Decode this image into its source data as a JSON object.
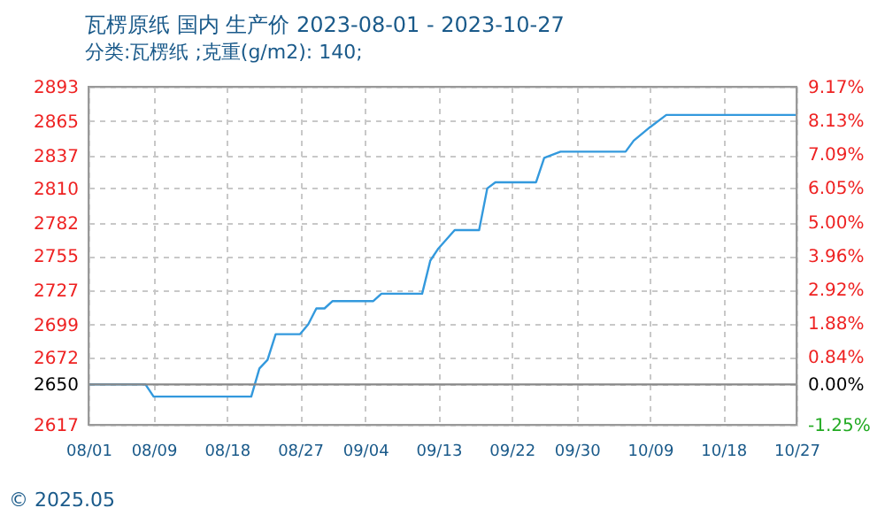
{
  "chart_data": {
    "type": "line",
    "title": "瓦楞原纸 国内 生产价 2023-08-01 - 2023-10-27",
    "subtitle": "分类:瓦楞纸 ;克重(g/m2): 140;",
    "x": [
      "2023-08-01",
      "2023-08-08",
      "2023-08-09",
      "2023-08-21",
      "2023-08-22",
      "2023-08-23",
      "2023-08-24",
      "2023-08-27",
      "2023-08-28",
      "2023-08-29",
      "2023-08-30",
      "2023-08-31",
      "2023-09-05",
      "2023-09-06",
      "2023-09-11",
      "2023-09-12",
      "2023-09-13",
      "2023-09-15",
      "2023-09-18",
      "2023-09-19",
      "2023-09-20",
      "2023-09-25",
      "2023-09-26",
      "2023-09-28",
      "2023-10-06",
      "2023-10-07",
      "2023-10-09",
      "2023-10-11",
      "2023-10-27"
    ],
    "series": [
      {
        "color": "#3399dd",
        "values": [
          2650,
          2650,
          2640,
          2640,
          2663,
          2670,
          2691,
          2691,
          2699,
          2712,
          2712,
          2718,
          2718,
          2724,
          2724,
          2751,
          2761,
          2776,
          2776,
          2810,
          2815,
          2815,
          2835,
          2840,
          2840,
          2849,
          2860,
          2870,
          2870
        ]
      }
    ],
    "xlim": [
      "2023-08-01",
      "2023-10-27"
    ],
    "xticks": [
      {
        "value": "2023-08-01",
        "label": "08/01"
      },
      {
        "value": "2023-08-09",
        "label": "08/09"
      },
      {
        "value": "2023-08-18",
        "label": "08/18"
      },
      {
        "value": "2023-08-27",
        "label": "08/27"
      },
      {
        "value": "2023-09-04",
        "label": "09/04"
      },
      {
        "value": "2023-09-13",
        "label": "09/13"
      },
      {
        "value": "2023-09-22",
        "label": "09/22"
      },
      {
        "value": "2023-09-30",
        "label": "09/30"
      },
      {
        "value": "2023-10-09",
        "label": "10/09"
      },
      {
        "value": "2023-10-18",
        "label": "10/18"
      },
      {
        "value": "2023-10-27",
        "label": "10/27"
      }
    ],
    "ylim": [
      2617,
      2893
    ],
    "yticks": [
      2617,
      2650,
      2672,
      2699,
      2727,
      2755,
      2782,
      2810,
      2837,
      2865,
      2893
    ],
    "y2lim": [
      -1.25,
      9.17
    ],
    "y2ticks": [
      {
        "value": -1.25,
        "label": "-1.25%"
      },
      {
        "value": 0,
        "label": "0.00%"
      },
      {
        "value": 0.84,
        "label": "0.84%"
      },
      {
        "value": 1.88,
        "label": "1.88%"
      },
      {
        "value": 2.92,
        "label": "2.92%"
      },
      {
        "value": 3.96,
        "label": "3.96%"
      },
      {
        "value": 5.0,
        "label": "5.00%"
      },
      {
        "value": 6.05,
        "label": "6.05%"
      },
      {
        "value": 7.09,
        "label": "7.09%"
      },
      {
        "value": 8.13,
        "label": "8.13%"
      },
      {
        "value": 9.17,
        "label": "9.17%"
      }
    ],
    "ref_lines": [
      {
        "axis": "y",
        "value": 2650,
        "color": "#888888"
      }
    ],
    "grid": true,
    "marker": "none",
    "line_style": "solid",
    "annotations": [
      "© 2025.05"
    ]
  }
}
